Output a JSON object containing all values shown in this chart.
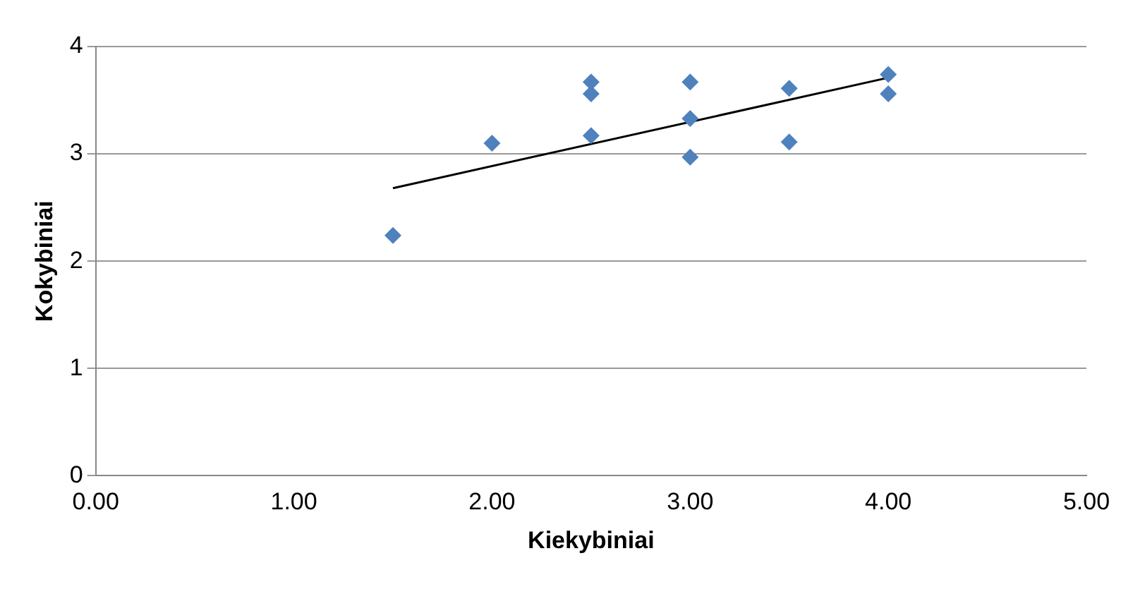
{
  "chart_data": {
    "type": "scatter",
    "xlabel": "Kiekybiniai",
    "ylabel": "Kokybiniai",
    "xlim": [
      0,
      5
    ],
    "ylim": [
      0,
      4
    ],
    "xticks": [
      {
        "value": 0,
        "label": "0.00"
      },
      {
        "value": 1,
        "label": "1.00"
      },
      {
        "value": 2,
        "label": "2.00"
      },
      {
        "value": 3,
        "label": "3.00"
      },
      {
        "value": 4,
        "label": "4.00"
      },
      {
        "value": 5,
        "label": "5.00"
      }
    ],
    "yticks": [
      0,
      1,
      2,
      3,
      4
    ],
    "grid": "y",
    "legend": false,
    "series": [
      {
        "type": "scatter",
        "color": "#4f81bd",
        "marker": "diamond",
        "x": [
          1.5,
          2,
          2.5,
          2.5,
          2.5,
          3,
          3,
          3,
          3.5,
          3.5,
          4,
          4
        ],
        "values": [
          2.24,
          3.1,
          3.67,
          3.56,
          3.17,
          3.67,
          3.33,
          2.97,
          3.61,
          3.11,
          3.74,
          3.56
        ]
      },
      {
        "type": "line",
        "color": "#000000",
        "marker": "none",
        "x": [
          1.5,
          4
        ],
        "values": [
          2.68,
          3.71
        ]
      }
    ]
  }
}
